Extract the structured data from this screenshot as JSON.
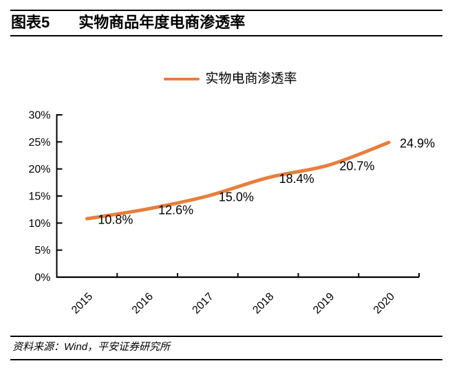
{
  "header": {
    "figure_label": "图表5",
    "title": "实物商品年度电商渗透率"
  },
  "legend": {
    "label": "实物电商渗透率"
  },
  "chart_data": {
    "type": "line",
    "title": "实物商品年度电商渗透率",
    "categories": [
      "2015",
      "2016",
      "2017",
      "2018",
      "2019",
      "2020"
    ],
    "series": [
      {
        "name": "实物电商渗透率",
        "values": [
          10.8,
          12.6,
          15.0,
          18.4,
          20.7,
          24.9
        ]
      }
    ],
    "data_labels": [
      "10.8%",
      "12.6%",
      "15.0%",
      "18.4%",
      "20.7%",
      "24.9%"
    ],
    "xlabel": "",
    "ylabel": "",
    "ylim": [
      0,
      30
    ],
    "ytick_step": 5,
    "ytick_labels": [
      "0%",
      "5%",
      "10%",
      "15%",
      "20%",
      "25%",
      "30%"
    ],
    "grid": false,
    "legend_position": "top-center",
    "line_color": "#E87E3D",
    "line_smooth": true
  },
  "footer": {
    "source": "资料来源：Wind，平安证券研究所"
  },
  "colors": {
    "accent_orange": "#E87E3D",
    "axis": "#000000",
    "text": "#000000"
  }
}
